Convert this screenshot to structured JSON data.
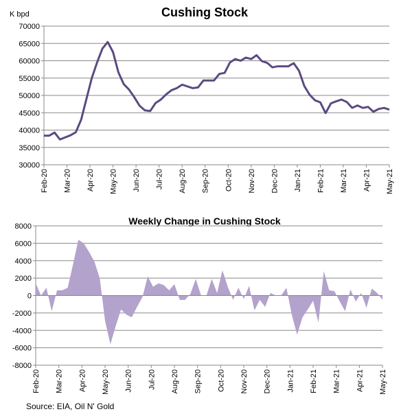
{
  "source": "Source: EIA, Oil N' Gold",
  "chart_data": [
    {
      "type": "line",
      "title": "Cushing Stock",
      "ylabel": "K bpd",
      "ylim": [
        30000,
        70000
      ],
      "ytick_labels": [
        "30000",
        "35000",
        "40000",
        "45000",
        "50000",
        "55000",
        "60000",
        "65000",
        "70000"
      ],
      "xtick_labels": [
        "Feb-20",
        "Mar-20",
        "Apr-20",
        "May-20",
        "Jun-20",
        "Jul-20",
        "Aug-20",
        "Sep-20",
        "Oct-20",
        "Nov-20",
        "Dec-20",
        "Jan-21",
        "Feb-21",
        "Mar-21",
        "Apr-21",
        "May-21"
      ],
      "line_color": "#5b4a80",
      "x_index_range": [
        0,
        65
      ],
      "values": [
        38400,
        38400,
        39300,
        37300,
        37900,
        38500,
        39400,
        43000,
        49000,
        55000,
        59500,
        63500,
        65400,
        62500,
        56700,
        53300,
        51700,
        49500,
        47000,
        45700,
        45500,
        47800,
        48800,
        50300,
        51500,
        52100,
        53100,
        52600,
        52100,
        52300,
        54300,
        54300,
        54300,
        56200,
        56500,
        59500,
        60500,
        60000,
        60900,
        60500,
        61600,
        59900,
        59400,
        58100,
        58400,
        58400,
        58400,
        59300,
        57100,
        52700,
        50200,
        48600,
        48000,
        44900,
        47700,
        48300,
        48800,
        48100,
        46400,
        47100,
        46400,
        46700,
        45300,
        46100,
        46400,
        45900
      ]
    },
    {
      "type": "area",
      "title": "Weekly Change in Cushing Stock",
      "ylim": [
        -8000,
        8000
      ],
      "ytick_labels": [
        "-8000",
        "-6000",
        "-4000",
        "-2000",
        "0",
        "2000",
        "4000",
        "6000",
        "8000"
      ],
      "xtick_labels": [
        "Feb-20",
        "Mar-20",
        "Apr-20",
        "May-20",
        "Jun-20",
        "Jul-20",
        "Aug-20",
        "Sep-20",
        "Oct-20",
        "Nov-20",
        "Dec-20",
        "Jan-21",
        "Feb-21",
        "Mar-21",
        "Apr-21",
        "May-21"
      ],
      "fill_color": "#b3a2cc",
      "x_index_range": [
        0,
        65
      ],
      "values": [
        1400,
        0,
        900,
        -1800,
        600,
        600,
        900,
        3600,
        6400,
        6000,
        5000,
        3900,
        2000,
        -2900,
        -5600,
        -3500,
        -1600,
        -2200,
        -2500,
        -1300,
        -200,
        2200,
        1000,
        1400,
        1200,
        600,
        1300,
        -500,
        -500,
        200,
        1900,
        0,
        0,
        1900,
        300,
        2900,
        1000,
        -500,
        900,
        -400,
        1100,
        -1700,
        -500,
        -1300,
        300,
        0,
        0,
        900,
        -2200,
        -4500,
        -2500,
        -1600,
        -600,
        -3100,
        2800,
        600,
        500,
        -700,
        -1800,
        700,
        -700,
        300,
        -1400,
        800,
        300,
        -500
      ]
    }
  ]
}
